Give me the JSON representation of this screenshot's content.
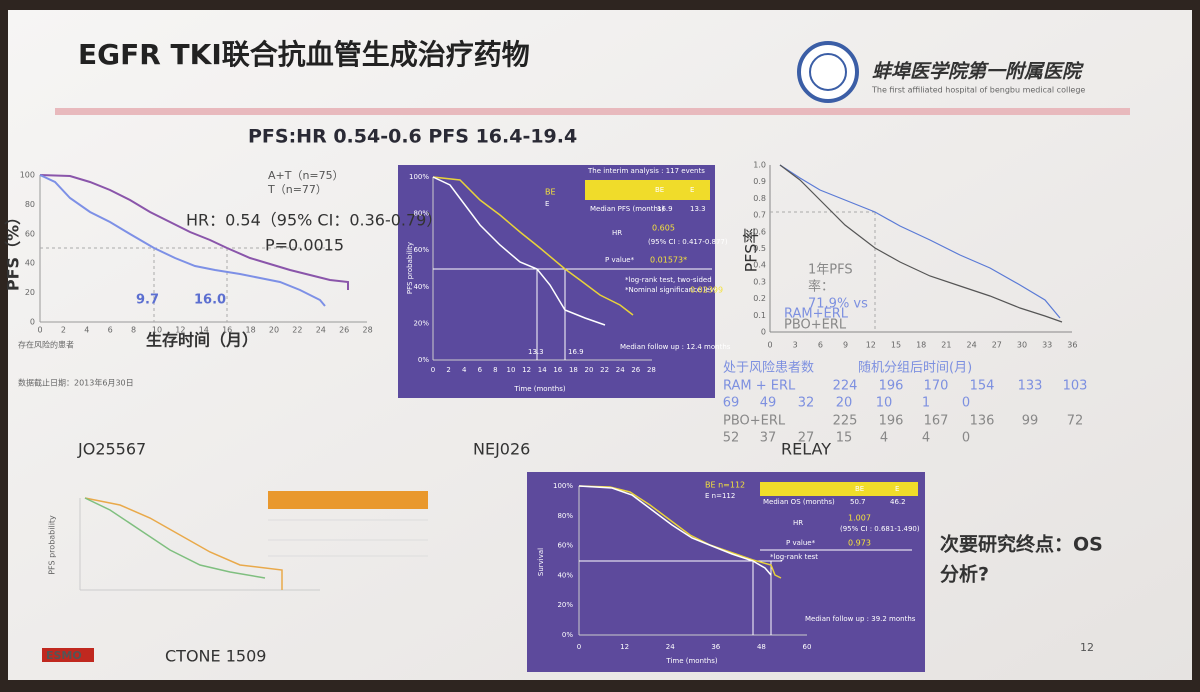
{
  "header": {
    "title": "EGFR TKI联合抗血管生成治疗药物",
    "hospital_cn": "蚌埠医学院第一附属医院",
    "hospital_en": "The first affiliated hospital of bengbu medical college"
  },
  "subtitle": "PFS:HR 0.54-0.6   PFS 16.4-19.4",
  "jo25567": {
    "label": "JO25567",
    "legend": [
      "A+T（n=75）",
      "T（n=77）"
    ],
    "hr": "HR：0.54（95% CI：0.36-0.79）",
    "p": "P=0.0015",
    "y_label": "PFS（%）",
    "x_label": "生存时间（月）",
    "medians": [
      "9.7",
      "16.0"
    ],
    "xticks": [
      0,
      2,
      4,
      6,
      8,
      10,
      12,
      14,
      16,
      18,
      20,
      22,
      24,
      26,
      28
    ],
    "yticks": [
      0,
      20,
      40,
      60,
      80,
      100
    ],
    "risk_label": "存在风险的患者",
    "cutoff": "数据截止日期：2013年6月30日"
  },
  "nej026": {
    "label": "NEJ026",
    "header": "The interim analysis : 117 events",
    "legend": [
      "BE",
      "E"
    ],
    "col_heads": [
      "BE",
      "E"
    ],
    "median_label": "Median PFS (months)",
    "medians": [
      "16.9",
      "13.3"
    ],
    "hr_label": "HR",
    "hr": "0.605",
    "ci": "(95% CI : 0.417-0.877)",
    "p_label": "P value*",
    "p": "0.01573*",
    "note1": "*log-rank test, two-sided",
    "note2": "*Nominal significance level",
    "note2_value": "0.02399",
    "follow_up": "Median follow up : 12.4 months",
    "y_label": "PFS probability",
    "x_label": "Time (months)",
    "xticks": [
      0,
      2,
      4,
      6,
      8,
      10,
      12,
      14,
      16,
      18,
      20,
      22,
      24,
      26,
      28
    ],
    "yticks": [
      "0%",
      "20%",
      "40%",
      "60%",
      "80%",
      "100%"
    ]
  },
  "relay": {
    "label": "RELAY",
    "y_label": "PFS率",
    "xticks": [
      0,
      3,
      6,
      9,
      12,
      15,
      18,
      21,
      24,
      27,
      30,
      33,
      36
    ],
    "yticks": [
      "0",
      "0.1",
      "0.2",
      "0.3",
      "0.4",
      "0.5",
      "0.6",
      "0.7",
      "0.8",
      "0.9",
      "1.0"
    ],
    "annot": [
      "1年PFS",
      "率：",
      "71.9% vs"
    ],
    "legend": [
      "RAM+ERL",
      "PBO+ERL"
    ],
    "risk_title": "处于风险患者数",
    "time_title": "随机分组后时间(月)",
    "rows": [
      {
        "name": "RAM + ERL",
        "values": [
          224,
          196,
          170,
          154,
          133,
          103,
          69,
          49,
          32,
          20,
          10,
          1,
          0
        ]
      },
      {
        "name": "PBO+ERL",
        "values": [
          225,
          196,
          167,
          136,
          99,
          72,
          52,
          37,
          27,
          15,
          4,
          4,
          0
        ]
      }
    ]
  },
  "ctone": {
    "label": "CTONE 1509",
    "y_label": "PFS probability"
  },
  "os": {
    "legend": [
      "BE n=112",
      "E n=112"
    ],
    "median_label": "Median OS (months)",
    "col_heads": [
      "BE",
      "E"
    ],
    "medians": [
      "50.7",
      "46.2"
    ],
    "hr_label": "HR",
    "hr": "1.007",
    "ci": "(95% CI : 0.681-1.490)",
    "p_label": "P value*",
    "p": "0.973",
    "note": "*log-rank test",
    "follow_up": "Median follow up : 39.2 months",
    "y_label": "Survival",
    "x_label": "Time (months)",
    "xticks": [
      0,
      12,
      24,
      36,
      48,
      60
    ],
    "yticks": [
      "0%",
      "20%",
      "40%",
      "60%",
      "80%",
      "100%"
    ]
  },
  "secondary": [
    "次要研究终点：OS",
    "分析?"
  ],
  "footer": {
    "logo": "ESMO",
    "page": "12"
  }
}
